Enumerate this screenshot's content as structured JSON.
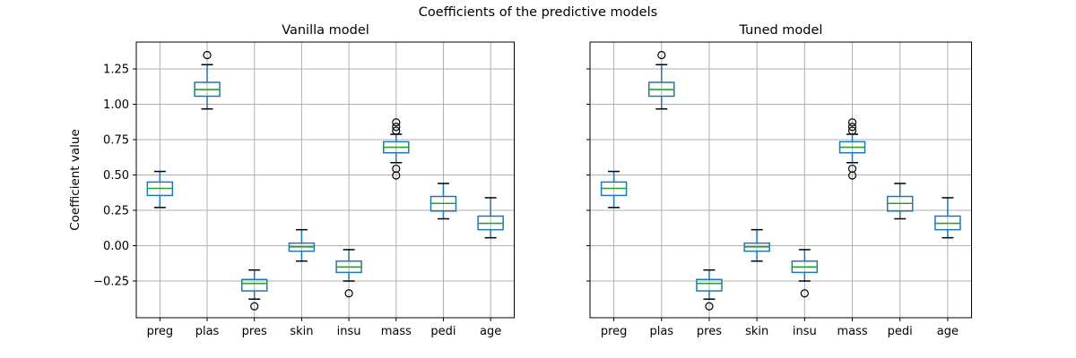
{
  "figure": {
    "title": "Coefficients of the predictive models",
    "ylabel": "Coefficient value"
  },
  "colors": {
    "box": "#1f77b4",
    "median": "#2ca02c",
    "whisker": "#1f77b4",
    "cap": "#000000",
    "flier": "#000000",
    "grid": "#b0b0b0",
    "spine": "#000000",
    "background": "#ffffff"
  },
  "chart_data": [
    {
      "type": "boxplot",
      "title": "Vanilla model",
      "categories": [
        "preg",
        "plas",
        "pres",
        "skin",
        "insu",
        "mass",
        "pedi",
        "age"
      ],
      "yticks": [
        1.25,
        1.0,
        0.75,
        0.5,
        0.25,
        0.0,
        -0.25
      ],
      "yticklabels": [
        "1.25",
        "1.00",
        "0.75",
        "0.50",
        "0.25",
        "0.00",
        "−0.25"
      ],
      "show_ytick_labels": true,
      "ylim": [
        -0.51,
        1.44
      ],
      "grid": true,
      "boxes": [
        {
          "label": "preg",
          "whislo": 0.27,
          "q1": 0.355,
          "med": 0.405,
          "q3": 0.45,
          "whishi": 0.525,
          "fliers": []
        },
        {
          "label": "plas",
          "whislo": 0.967,
          "q1": 1.057,
          "med": 1.104,
          "q3": 1.155,
          "whishi": 1.28,
          "fliers": [
            1.348
          ]
        },
        {
          "label": "pres",
          "whislo": -0.378,
          "q1": -0.32,
          "med": -0.267,
          "q3": -0.239,
          "whishi": -0.172,
          "fliers": [
            -0.429
          ]
        },
        {
          "label": "skin",
          "whislo": -0.109,
          "q1": -0.039,
          "med": -0.008,
          "q3": 0.018,
          "whishi": 0.113,
          "fliers": []
        },
        {
          "label": "insu",
          "whislo": -0.25,
          "q1": -0.189,
          "med": -0.151,
          "q3": -0.109,
          "whishi": -0.028,
          "fliers": [
            -0.337
          ]
        },
        {
          "label": "mass",
          "whislo": 0.587,
          "q1": 0.657,
          "med": 0.696,
          "q3": 0.735,
          "whishi": 0.788,
          "fliers": [
            0.813,
            0.84,
            0.872,
            0.544,
            0.497
          ]
        },
        {
          "label": "pedi",
          "whislo": 0.19,
          "q1": 0.245,
          "med": 0.299,
          "q3": 0.348,
          "whishi": 0.44,
          "fliers": []
        },
        {
          "label": "age",
          "whislo": 0.056,
          "q1": 0.113,
          "med": 0.158,
          "q3": 0.209,
          "whishi": 0.339,
          "fliers": []
        }
      ]
    },
    {
      "type": "boxplot",
      "title": "Tuned model",
      "categories": [
        "preg",
        "plas",
        "pres",
        "skin",
        "insu",
        "mass",
        "pedi",
        "age"
      ],
      "yticks": [
        1.25,
        1.0,
        0.75,
        0.5,
        0.25,
        0.0,
        -0.25
      ],
      "yticklabels": [
        "1.25",
        "1.00",
        "0.75",
        "0.50",
        "0.25",
        "0.00",
        "−0.25"
      ],
      "show_ytick_labels": false,
      "ylim": [
        -0.51,
        1.44
      ],
      "grid": true,
      "boxes": [
        {
          "label": "preg",
          "whislo": 0.27,
          "q1": 0.355,
          "med": 0.405,
          "q3": 0.45,
          "whishi": 0.525,
          "fliers": []
        },
        {
          "label": "plas",
          "whislo": 0.967,
          "q1": 1.057,
          "med": 1.104,
          "q3": 1.155,
          "whishi": 1.28,
          "fliers": [
            1.348
          ]
        },
        {
          "label": "pres",
          "whislo": -0.378,
          "q1": -0.32,
          "med": -0.267,
          "q3": -0.239,
          "whishi": -0.172,
          "fliers": [
            -0.429
          ]
        },
        {
          "label": "skin",
          "whislo": -0.109,
          "q1": -0.039,
          "med": -0.008,
          "q3": 0.018,
          "whishi": 0.113,
          "fliers": []
        },
        {
          "label": "insu",
          "whislo": -0.25,
          "q1": -0.189,
          "med": -0.151,
          "q3": -0.109,
          "whishi": -0.028,
          "fliers": [
            -0.337
          ]
        },
        {
          "label": "mass",
          "whislo": 0.587,
          "q1": 0.657,
          "med": 0.696,
          "q3": 0.735,
          "whishi": 0.788,
          "fliers": [
            0.813,
            0.84,
            0.872,
            0.544,
            0.497
          ]
        },
        {
          "label": "pedi",
          "whislo": 0.19,
          "q1": 0.245,
          "med": 0.299,
          "q3": 0.348,
          "whishi": 0.44,
          "fliers": []
        },
        {
          "label": "age",
          "whislo": 0.056,
          "q1": 0.113,
          "med": 0.158,
          "q3": 0.209,
          "whishi": 0.339,
          "fliers": []
        }
      ]
    }
  ]
}
